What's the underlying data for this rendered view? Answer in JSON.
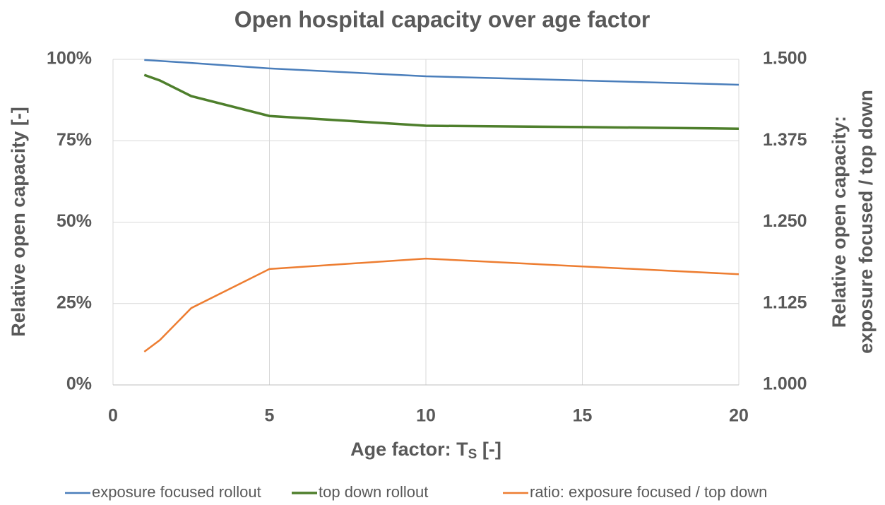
{
  "chart_data": {
    "type": "line",
    "title": "Open hospital capacity over age factor",
    "xlabel": {
      "text": "Age factor: T",
      "subscript": "S",
      "suffix": " [-]"
    },
    "ylabel": "Relative open capacity [-]",
    "y2label": [
      "Relative open capacity:",
      "exposure focused / top down"
    ],
    "x": [
      1,
      1.5,
      2.5,
      5,
      10,
      15,
      20
    ],
    "series": [
      {
        "name": "exposure focused rollout",
        "color": "#4a7ebb",
        "values": [
          99.8,
          99.5,
          98.9,
          97.2,
          94.8,
          93.5,
          92.2
        ]
      },
      {
        "name": "top down rollout",
        "color": "#4e7f2c",
        "values": [
          95.2,
          93.5,
          88.7,
          82.6,
          79.6,
          79.2,
          78.7
        ]
      },
      {
        "name": "ratio: exposure focused / top down",
        "color": "#ed7d31",
        "axis": "y2",
        "values": [
          1.051,
          1.069,
          1.118,
          1.178,
          1.194,
          1.182,
          1.17
        ]
      }
    ],
    "xlim": [
      0,
      20
    ],
    "xticks": [
      0,
      5,
      10,
      15,
      20
    ],
    "ylim": [
      0,
      100
    ],
    "yticks": [
      {
        "value": 0,
        "label": "0%"
      },
      {
        "value": 25,
        "label": "25%"
      },
      {
        "value": 50,
        "label": "50%"
      },
      {
        "value": 75,
        "label": "75%"
      },
      {
        "value": 100,
        "label": "100%"
      }
    ],
    "y2lim": [
      1,
      1.5
    ],
    "y2ticks": [
      {
        "value": 1,
        "label": "1.000"
      },
      {
        "value": 1.125,
        "label": "1.125"
      },
      {
        "value": 1.25,
        "label": "1.250"
      },
      {
        "value": 1.375,
        "label": "1.375"
      },
      {
        "value": 1.5,
        "label": "1.500"
      }
    ],
    "grid": true,
    "legend": "bottom"
  }
}
